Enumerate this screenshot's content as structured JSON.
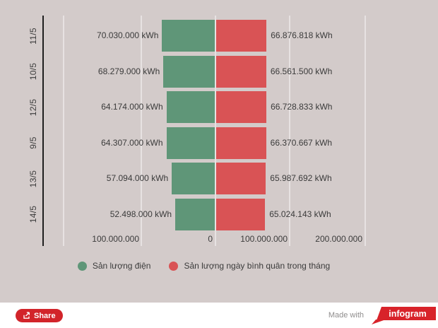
{
  "colors": {
    "background": "#d3cbca",
    "green": "#5f9678",
    "red": "#d95355",
    "accent_red": "#d2242a",
    "logo_red": "#d8232a",
    "axis_line": "#1f1f1f",
    "text": "#3b3b3b"
  },
  "chart_data": {
    "type": "bar",
    "orientation": "horizontal-diverging",
    "grid": true,
    "x_gridline_values": [
      -200000000,
      -100000000,
      0,
      100000000,
      200000000
    ],
    "x_ticks": [
      {
        "label": "100.000.000",
        "value": -100000000
      },
      {
        "label": "0",
        "value": 0
      },
      {
        "label": "100.000.000",
        "value": 100000000
      },
      {
        "label": "200.000.000",
        "value": 200000000
      }
    ],
    "categories": [
      "11/5",
      "10/5",
      "12/5",
      "9/5",
      "13/5",
      "14/5"
    ],
    "series": [
      {
        "name": "Sản lượng điện",
        "color": "#5f9678",
        "direction": "left",
        "values": [
          70030000,
          68279000,
          64174000,
          64307000,
          57094000,
          52498000
        ]
      },
      {
        "name": "Sản lượng ngày bình quân trong tháng",
        "color": "#d95355",
        "direction": "right",
        "values": [
          66876818,
          66561500,
          66728833,
          66370667,
          65987692,
          65024143
        ]
      }
    ],
    "rows": [
      {
        "category": "11/5",
        "left_label": "70.030.000 kWh",
        "left_value": 70030000,
        "right_label": "66.876.818 kWh",
        "right_value": 66876818
      },
      {
        "category": "10/5",
        "left_label": "68.279.000 kWh",
        "left_value": 68279000,
        "right_label": "66.561.500 kWh",
        "right_value": 66561500
      },
      {
        "category": "12/5",
        "left_label": "64.174.000 kWh",
        "left_value": 64174000,
        "right_label": "66.728.833 kWh",
        "right_value": 66728833
      },
      {
        "category": "9/5",
        "left_label": "64.307.000 kWh",
        "left_value": 64307000,
        "right_label": "66.370.667 kWh",
        "right_value": 66370667
      },
      {
        "category": "13/5",
        "left_label": "57.094.000 kWh",
        "left_value": 57094000,
        "right_label": "65.987.692 kWh",
        "right_value": 65987692
      },
      {
        "category": "14/5",
        "left_label": "52.498.000 kWh",
        "left_value": 52498000,
        "right_label": "65.024.143 kWh",
        "right_value": 65024143
      }
    ]
  },
  "legend": {
    "items": [
      {
        "label": "Sản lượng điện",
        "color": "#5f9678"
      },
      {
        "label": "Sản lượng ngày bình quân trong tháng",
        "color": "#d95355"
      }
    ]
  },
  "footer": {
    "share_label": "Share",
    "made_with": "Made with",
    "logo_text": "infogram"
  }
}
